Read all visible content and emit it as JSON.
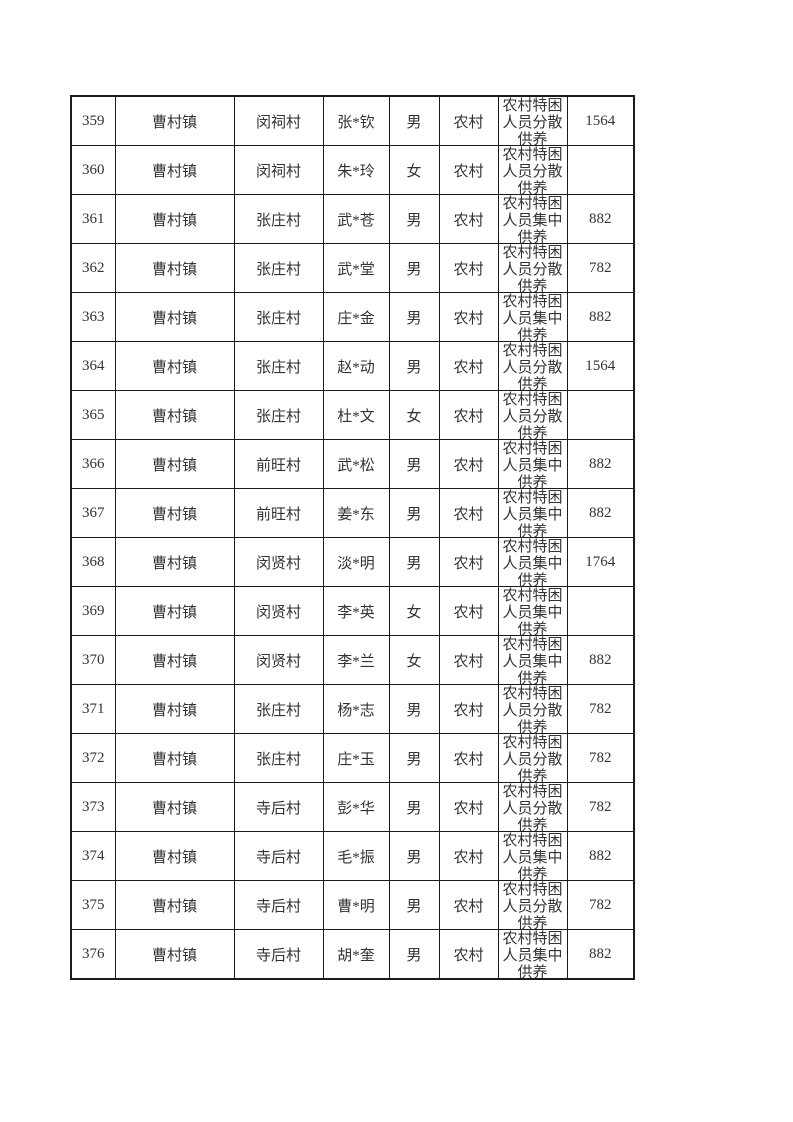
{
  "style": {
    "border_color": "#1b1b1b",
    "text_color": "#333333",
    "background_color": "#ffffff"
  },
  "table": {
    "rows": [
      {
        "seq": "359",
        "town": "曹村镇",
        "village": "闵祠村",
        "name": "张*钦",
        "gender": "男",
        "area": "农村",
        "category": "农村特困人员分散供养",
        "amount": "1564"
      },
      {
        "seq": "360",
        "town": "曹村镇",
        "village": "闵祠村",
        "name": "朱*玲",
        "gender": "女",
        "area": "农村",
        "category": "农村特困人员分散供养",
        "amount": ""
      },
      {
        "seq": "361",
        "town": "曹村镇",
        "village": "张庄村",
        "name": "武*苍",
        "gender": "男",
        "area": "农村",
        "category": "农村特困人员集中供养",
        "amount": "882"
      },
      {
        "seq": "362",
        "town": "曹村镇",
        "village": "张庄村",
        "name": "武*堂",
        "gender": "男",
        "area": "农村",
        "category": "农村特困人员分散供养",
        "amount": "782"
      },
      {
        "seq": "363",
        "town": "曹村镇",
        "village": "张庄村",
        "name": "庄*金",
        "gender": "男",
        "area": "农村",
        "category": "农村特困人员集中供养",
        "amount": "882"
      },
      {
        "seq": "364",
        "town": "曹村镇",
        "village": "张庄村",
        "name": "赵*动",
        "gender": "男",
        "area": "农村",
        "category": "农村特困人员分散供养",
        "amount": "1564"
      },
      {
        "seq": "365",
        "town": "曹村镇",
        "village": "张庄村",
        "name": "杜*文",
        "gender": "女",
        "area": "农村",
        "category": "农村特困人员分散供养",
        "amount": ""
      },
      {
        "seq": "366",
        "town": "曹村镇",
        "village": "前旺村",
        "name": "武*松",
        "gender": "男",
        "area": "农村",
        "category": "农村特困人员集中供养",
        "amount": "882"
      },
      {
        "seq": "367",
        "town": "曹村镇",
        "village": "前旺村",
        "name": "姜*东",
        "gender": "男",
        "area": "农村",
        "category": "农村特困人员集中供养",
        "amount": "882"
      },
      {
        "seq": "368",
        "town": "曹村镇",
        "village": "闵贤村",
        "name": "淡*明",
        "gender": "男",
        "area": "农村",
        "category": "农村特困人员集中供养",
        "amount": "1764"
      },
      {
        "seq": "369",
        "town": "曹村镇",
        "village": "闵贤村",
        "name": "李*英",
        "gender": "女",
        "area": "农村",
        "category": "农村特困人员集中供养",
        "amount": ""
      },
      {
        "seq": "370",
        "town": "曹村镇",
        "village": "闵贤村",
        "name": "李*兰",
        "gender": "女",
        "area": "农村",
        "category": "农村特困人员集中供养",
        "amount": "882"
      },
      {
        "seq": "371",
        "town": "曹村镇",
        "village": "张庄村",
        "name": "杨*志",
        "gender": "男",
        "area": "农村",
        "category": "农村特困人员分散供养",
        "amount": "782"
      },
      {
        "seq": "372",
        "town": "曹村镇",
        "village": "张庄村",
        "name": "庄*玉",
        "gender": "男",
        "area": "农村",
        "category": "农村特困人员分散供养",
        "amount": "782"
      },
      {
        "seq": "373",
        "town": "曹村镇",
        "village": "寺后村",
        "name": "彭*华",
        "gender": "男",
        "area": "农村",
        "category": "农村特困人员分散供养",
        "amount": "782"
      },
      {
        "seq": "374",
        "town": "曹村镇",
        "village": "寺后村",
        "name": "毛*振",
        "gender": "男",
        "area": "农村",
        "category": "农村特困人员集中供养",
        "amount": "882"
      },
      {
        "seq": "375",
        "town": "曹村镇",
        "village": "寺后村",
        "name": "曹*明",
        "gender": "男",
        "area": "农村",
        "category": "农村特困人员分散供养",
        "amount": "782"
      },
      {
        "seq": "376",
        "town": "曹村镇",
        "village": "寺后村",
        "name": "胡*奎",
        "gender": "男",
        "area": "农村",
        "category": "农村特困人员集中供养",
        "amount": "882"
      }
    ]
  }
}
